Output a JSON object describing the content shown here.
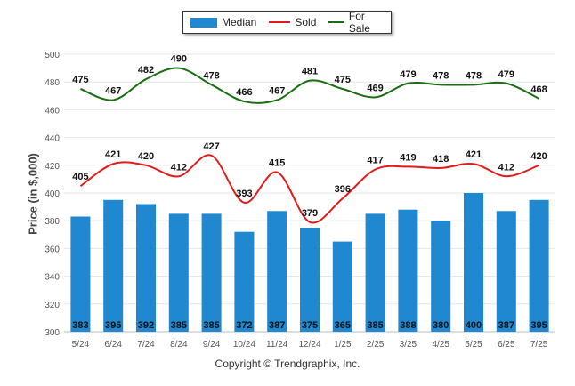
{
  "legend": {
    "median": "Median",
    "sold": "Sold",
    "for_sale": "For Sale"
  },
  "credit": "Copyright © Trendgraphix, Inc.",
  "colors": {
    "median": "#1f88d0",
    "sold": "#e31b1b",
    "for_sale": "#1a6e12"
  },
  "chart_data": {
    "type": "bar",
    "title": "",
    "xlabel": "",
    "ylabel": "Price (in $,000)",
    "ylim": [
      300,
      500
    ],
    "yticks": [
      300,
      320,
      340,
      360,
      380,
      400,
      420,
      440,
      460,
      480,
      500
    ],
    "grid": true,
    "legend_position": "top-center",
    "categories": [
      "5/24",
      "6/24",
      "7/24",
      "8/24",
      "9/24",
      "10/24",
      "11/24",
      "12/24",
      "1/25",
      "2/25",
      "3/25",
      "4/25",
      "5/25",
      "6/25",
      "7/25"
    ],
    "series": [
      {
        "name": "Median",
        "type": "bar",
        "values": [
          383,
          395,
          392,
          385,
          385,
          372,
          387,
          375,
          365,
          385,
          388,
          380,
          400,
          387,
          395
        ]
      },
      {
        "name": "Sold",
        "type": "line",
        "values": [
          405,
          421,
          420,
          412,
          427,
          393,
          415,
          379,
          396,
          417,
          419,
          418,
          421,
          412,
          420
        ]
      },
      {
        "name": "For Sale",
        "type": "line",
        "values": [
          475,
          467,
          482,
          490,
          478,
          466,
          467,
          481,
          475,
          469,
          479,
          478,
          478,
          479,
          468
        ]
      }
    ]
  }
}
